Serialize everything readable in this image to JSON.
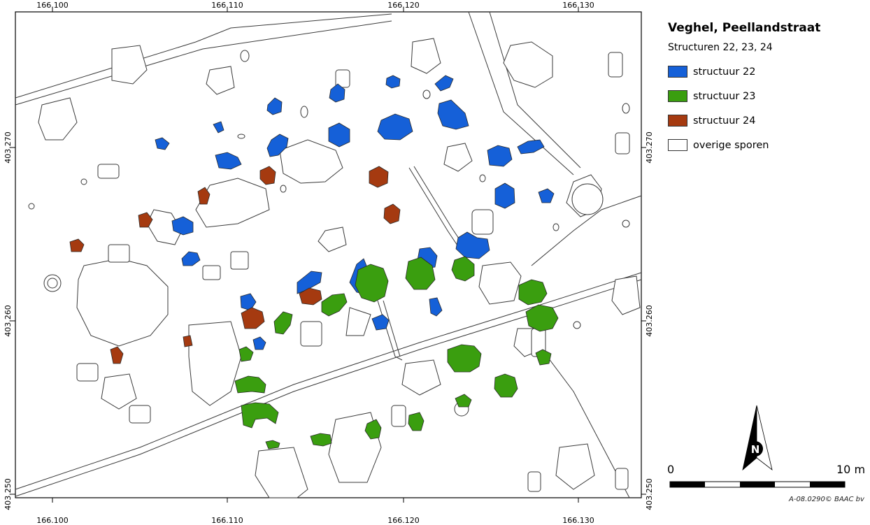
{
  "map": {
    "x_ticks": [
      "166.100",
      "166.110",
      "166.120",
      "166.130"
    ],
    "y_ticks": [
      "403.270",
      "403.260",
      "403.250"
    ]
  },
  "legend": {
    "title": "Veghel, Peellandstraat",
    "subtitle": "Structuren 22, 23, 24",
    "items": [
      {
        "label": "structuur 22",
        "color": "#1560d8"
      },
      {
        "label": "structuur 23",
        "color": "#3a9e0f"
      },
      {
        "label": "structuur 24",
        "color": "#a53a10"
      },
      {
        "label": "overige sporen",
        "color": "#ffffff"
      }
    ]
  },
  "north_arrow": {
    "letter": "N"
  },
  "scale_bar": {
    "start_label": "0",
    "end_label": "10 m"
  },
  "credit": "A-08.0290© BAAC bv"
}
